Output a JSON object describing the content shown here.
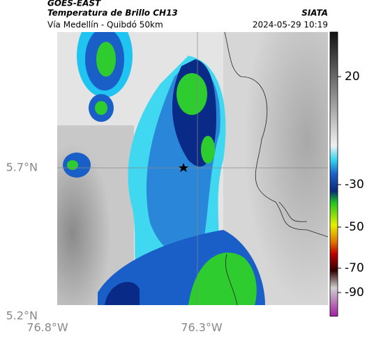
{
  "header": {
    "title": "GOES-EAST",
    "subtitle": "Temperatura de Brillo CH13",
    "route": "Vía Medellín - Quibdó 50km",
    "source": "SIATA",
    "timestamp": "2024-05-29 10:19"
  },
  "axes": {
    "lat_labels": [
      "5.7°N",
      "5.2°N"
    ],
    "lon_labels": [
      "76.8°W",
      "76.3°W"
    ]
  },
  "colorbar": {
    "ticks": [
      20,
      -30,
      -50,
      -70,
      -90
    ]
  }
}
